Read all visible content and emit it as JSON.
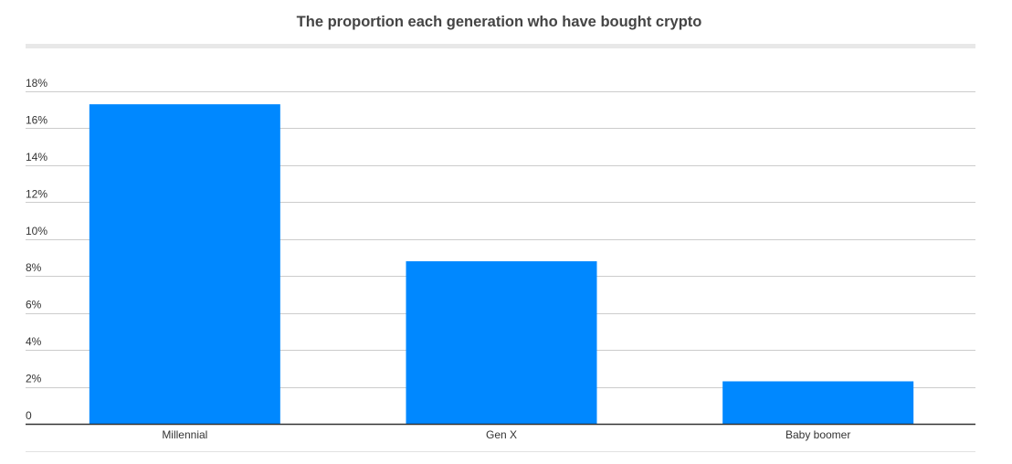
{
  "chart_data": {
    "type": "bar",
    "title": "The proportion each generation who have bought crypto",
    "categories": [
      "Millennial",
      "Gen X",
      "Baby boomer"
    ],
    "values": [
      17.3,
      8.8,
      2.3
    ],
    "ylim": [
      0,
      18
    ],
    "yticks": [
      0,
      2,
      4,
      6,
      8,
      10,
      12,
      14,
      16,
      18
    ],
    "ytick_labels": [
      "0",
      "2%",
      "4%",
      "6%",
      "8%",
      "10%",
      "12%",
      "14%",
      "16%",
      "18%"
    ],
    "xlabel": "",
    "ylabel": "",
    "grid": true,
    "legend": "none",
    "bar_color": "#0088ff",
    "grid_color": "#cccccc",
    "axis_color": "#333333"
  }
}
